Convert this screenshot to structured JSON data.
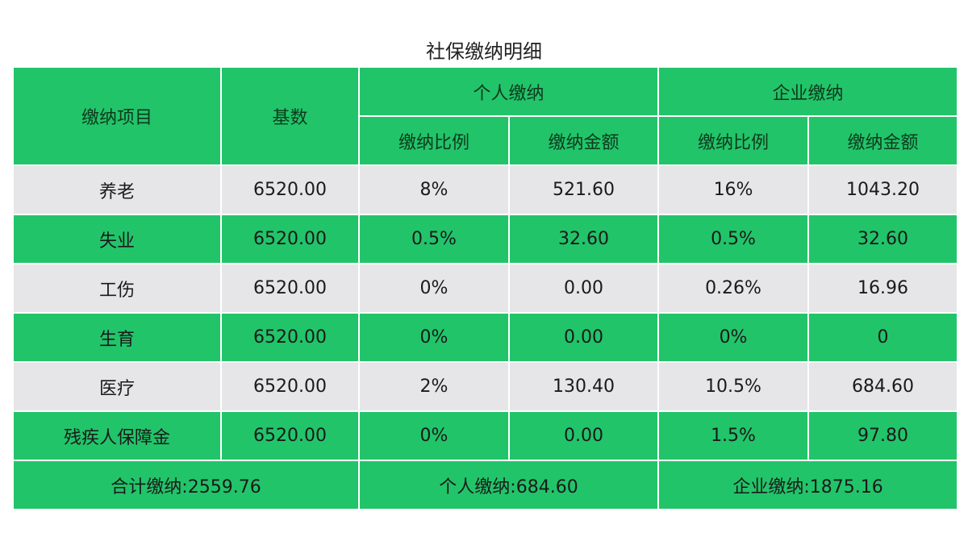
{
  "title": "社保缴纳明细",
  "colors": {
    "green": "#22c46a",
    "gray": "#e6e6e8"
  },
  "header": {
    "item": "缴纳项目",
    "base": "基数",
    "personal": "个人缴纳",
    "company": "企业缴纳",
    "rate": "缴纳比例",
    "amount": "缴纳金额"
  },
  "rows": [
    {
      "item": "养老",
      "base": "6520.00",
      "p_rate": "8%",
      "p_amount": "521.60",
      "c_rate": "16%",
      "c_amount": "1043.20"
    },
    {
      "item": "失业",
      "base": "6520.00",
      "p_rate": "0.5%",
      "p_amount": "32.60",
      "c_rate": "0.5%",
      "c_amount": "32.60"
    },
    {
      "item": "工伤",
      "base": "6520.00",
      "p_rate": "0%",
      "p_amount": "0.00",
      "c_rate": "0.26%",
      "c_amount": "16.96"
    },
    {
      "item": "生育",
      "base": "6520.00",
      "p_rate": "0%",
      "p_amount": "0.00",
      "c_rate": "0%",
      "c_amount": "0"
    },
    {
      "item": "医疗",
      "base": "6520.00",
      "p_rate": "2%",
      "p_amount": "130.40",
      "c_rate": "10.5%",
      "c_amount": "684.60"
    },
    {
      "item": "残疾人保障金",
      "base": "6520.00",
      "p_rate": "0%",
      "p_amount": "0.00",
      "c_rate": "1.5%",
      "c_amount": "97.80"
    }
  ],
  "footer": {
    "total": "合计缴纳:2559.76",
    "personal": "个人缴纳:684.60",
    "company": "企业缴纳:1875.16"
  }
}
